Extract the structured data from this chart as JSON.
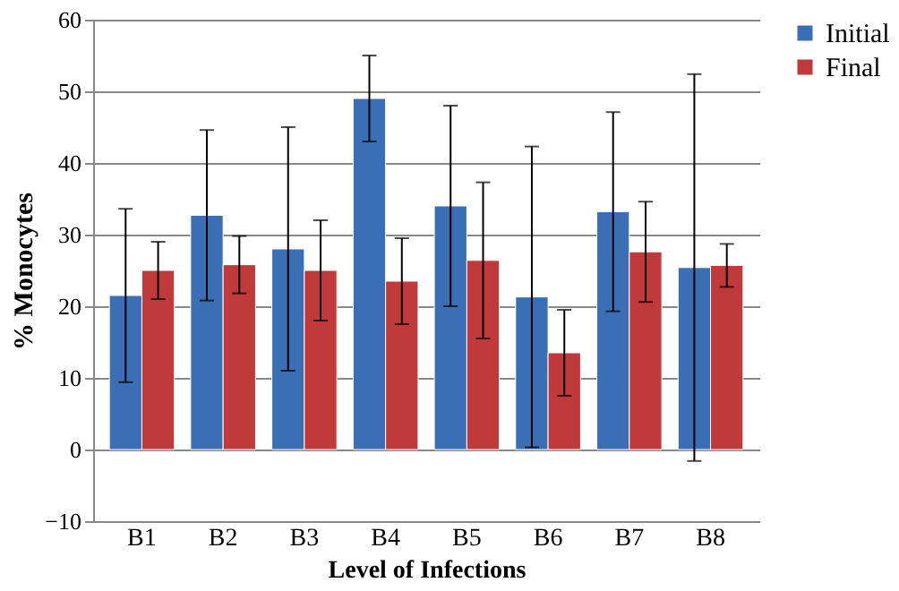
{
  "chart_data": {
    "type": "bar",
    "xlabel": "Level of Infections",
    "ylabel": "% Monocytes",
    "categories": [
      "B1",
      "B2",
      "B3",
      "B4",
      "B5",
      "B6",
      "B7",
      "B8"
    ],
    "series": [
      {
        "name": "Initial",
        "color": "#3a6fb5",
        "values": [
          21.5,
          32.7,
          28,
          49,
          34,
          21.3,
          33.2,
          25.4
        ],
        "errors": [
          12.1,
          11.9,
          17,
          6,
          14,
          21,
          13.9,
          27
        ]
      },
      {
        "name": "Final",
        "color": "#c0393b",
        "values": [
          25,
          25.8,
          25,
          23.5,
          26.4,
          13.5,
          27.6,
          25.7
        ],
        "errors": [
          4,
          4,
          7,
          6,
          10.9,
          6,
          7,
          3
        ]
      }
    ],
    "ylim": [
      -10,
      60
    ],
    "yticks": [
      -10,
      0,
      10,
      20,
      30,
      40,
      50,
      60
    ],
    "grid": "y",
    "legend": "right"
  }
}
